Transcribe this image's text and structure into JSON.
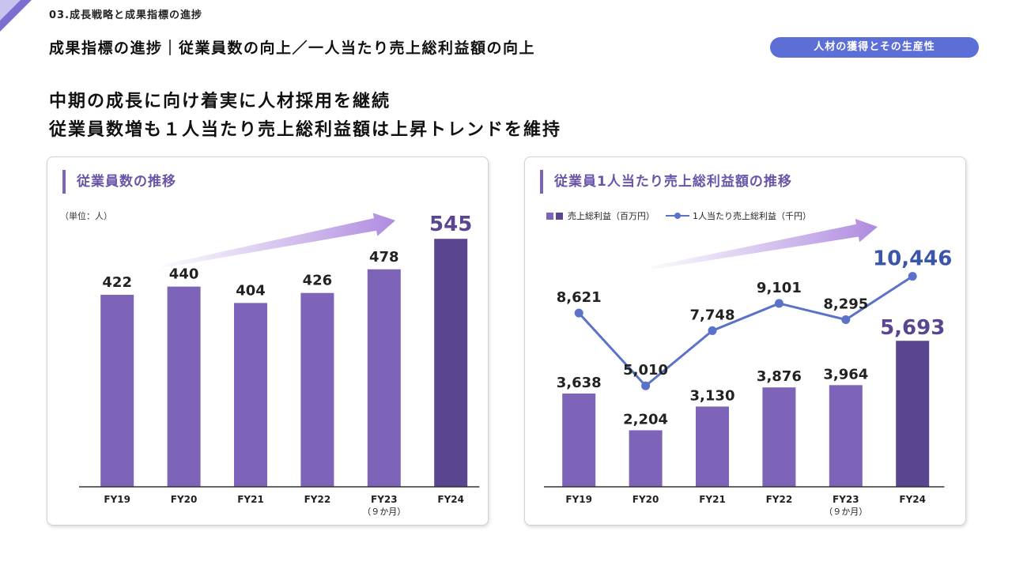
{
  "header": {
    "section_label": "03.成長戦略と成果指標の進捗",
    "page_title": "成果指標の進捗｜従業員数の向上／一人当たり売上総利益額の向上",
    "tag": "人材の獲得とその生産性"
  },
  "headline": {
    "line1": "中期の成長に向け着実に人材採用を継続",
    "line2": "従業員数増も１人当たり売上総利益額は上昇トレンドを維持"
  },
  "colors": {
    "bar": "#7d64b8",
    "bar_highlight": "#5a4590",
    "line": "#5a72c8",
    "accent_text": "#3b55a8",
    "pill": "#5b6fd6"
  },
  "left_panel": {
    "title": "従業員数の推移",
    "unit": "（単位：人）"
  },
  "right_panel": {
    "title": "従業員1人当たり売上総利益額の推移",
    "legend_bar": "売上総利益（百万円）",
    "legend_line": "1人当たり売上総利益（千円）"
  },
  "chart_data": [
    {
      "type": "bar",
      "title": "従業員数の推移",
      "unit": "（単位：人）",
      "categories": [
        "FY19",
        "FY20",
        "FY21",
        "FY22",
        "FY23",
        "FY24"
      ],
      "category_notes": [
        "",
        "",
        "",
        "",
        "（９か月）",
        ""
      ],
      "values": [
        422,
        440,
        404,
        426,
        478,
        545
      ],
      "value_labels": [
        "422",
        "440",
        "404",
        "426",
        "478",
        "545"
      ],
      "highlight_index": 5,
      "ylim": [
        0,
        620
      ],
      "grid": false
    },
    {
      "type": "bar",
      "title": "従業員1人当たり売上総利益額の推移",
      "categories": [
        "FY19",
        "FY20",
        "FY21",
        "FY22",
        "FY23",
        "FY24"
      ],
      "category_notes": [
        "",
        "",
        "",
        "",
        "（９か月）",
        ""
      ],
      "legend": "top-left",
      "grid": false,
      "series": [
        {
          "name": "売上総利益（百万円）",
          "type": "bar",
          "values": [
            3638,
            2204,
            3130,
            3876,
            3964,
            5693
          ],
          "value_labels": [
            "3,638",
            "2,204",
            "3,130",
            "3,876",
            "3,964",
            "5,693"
          ],
          "highlight_index": 5,
          "ylim": [
            0,
            11000
          ]
        },
        {
          "name": "1人当たり売上総利益（千円）",
          "type": "line",
          "values": [
            8621,
            5010,
            7748,
            9101,
            8295,
            10446
          ],
          "value_labels": [
            "8,621",
            "5,010",
            "7,748",
            "9,101",
            "8,295",
            "10,446"
          ],
          "highlight_index": 5,
          "ylim": [
            0,
            14000
          ]
        }
      ]
    }
  ]
}
